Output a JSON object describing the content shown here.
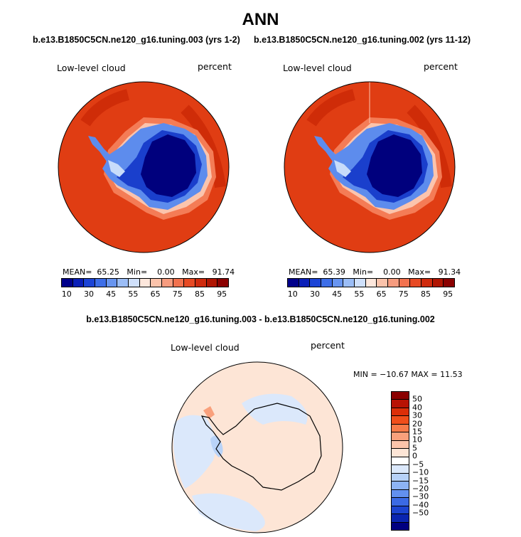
{
  "page": {
    "title": "ANN",
    "left_subtitle": "b.e13.B1850C5CN.ne120_g16.tuning.003 (yrs 1-2)",
    "right_subtitle": "b.e13.B1850C5CN.ne120_g16.tuning.002 (yrs 11-12)",
    "diff_title": "b.e13.B1850C5CN.ne120_g16.tuning.003 - b.e13.B1850C5CN.ne120_g16.tuning.002"
  },
  "plots": {
    "left": {
      "variable": "Low-level cloud",
      "units": "percent",
      "mean_label": "MEAN=",
      "mean": "65.25",
      "min_label": "Min=",
      "min": "0.00",
      "max_label": "Max=",
      "max": "91.74"
    },
    "right": {
      "variable": "Low-level cloud",
      "units": "percent",
      "mean_label": "MEAN=",
      "mean": "65.39",
      "min_label": "Min=",
      "min": "0.00",
      "max_label": "Max=",
      "max": "91.34"
    },
    "diff": {
      "variable": "Low-level cloud",
      "units": "percent",
      "range_text": "MIN = −10.67 MAX =  11.53"
    }
  },
  "colorbar_abs": {
    "colors": [
      "#00008b",
      "#0a1fb8",
      "#1c44d6",
      "#3d6ee8",
      "#6895f0",
      "#9bbdf6",
      "#cfe0fb",
      "#fde7dc",
      "#fbc3ab",
      "#f79c7f",
      "#f2724f",
      "#e74a24",
      "#cf2a0d",
      "#b01502",
      "#8b0000"
    ],
    "tick_labels": [
      "10",
      "30",
      "45",
      "55",
      "65",
      "75",
      "85",
      "95"
    ]
  },
  "colorbar_diff": {
    "colors": [
      "#8b0000",
      "#b81204",
      "#dc2e08",
      "#f04e1a",
      "#f77a48",
      "#f9a07c",
      "#fcc4aa",
      "#fde5d6",
      "#ffffff",
      "#dbe8fb",
      "#b6d1f8",
      "#8db3f4",
      "#6290ef",
      "#3b6ae4",
      "#1c44d0",
      "#0a25b0",
      "#000080"
    ],
    "tick_labels": [
      "50",
      "40",
      "30",
      "20",
      "15",
      "10",
      "5",
      "0",
      "−5",
      "−10",
      "−15",
      "−20",
      "−30",
      "−40",
      "−50"
    ]
  },
  "map_colors": {
    "ocean_abs": "#e03d13",
    "ocean_abs_dark": "#cf2c08",
    "ring_abs": "#f47c56",
    "ring_abs_light": "#fbc4ad",
    "ice_dark": "#00007d",
    "ice_mid": "#1a3fcc",
    "ice_light": "#5d8ced",
    "ice_pale": "#c8dcfa",
    "diff_base": "#fde5d6",
    "diff_blue": "#dbe8fb",
    "diff_blue2": "#b9d3f8"
  }
}
